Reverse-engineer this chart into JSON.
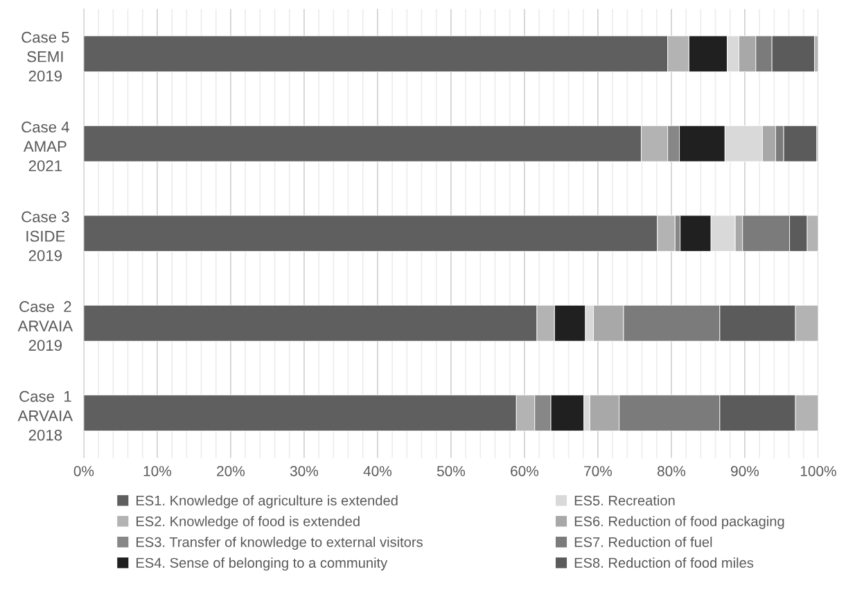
{
  "chart_data": {
    "type": "bar",
    "orientation": "horizontal",
    "stacked": true,
    "categories": [
      "Case 5\nSEMI\n2019",
      "Case 4\nAMAP\n2021",
      "Case 3\nISIDE\n2019",
      "Case  2\nARVAIA\n2019",
      "Case  1\nARVAIA\n2018"
    ],
    "series": [
      {
        "name": "ES1. Knowledge of agriculture is extended",
        "color": "#5f5f5f",
        "values": [
          79.5,
          75.9,
          78.1,
          61.7,
          58.9
        ]
      },
      {
        "name": "ES2. Knowledge of food is extended",
        "color": "#b3b3b3",
        "values": [
          2.9,
          3.6,
          2.4,
          2.4,
          2.5
        ]
      },
      {
        "name": "ES3. Transfer of knowledge to external visitors",
        "color": "#878787",
        "values": [
          0,
          1.6,
          0.7,
          0,
          2.2
        ]
      },
      {
        "name": "ES4. Sense of belonging to a community",
        "color": "#202020",
        "values": [
          5.2,
          6.2,
          4.2,
          4.2,
          4.5
        ]
      },
      {
        "name": "ES5. Recreation",
        "color": "#d9d9d9",
        "values": [
          1.6,
          5.1,
          3.3,
          1.1,
          0.8
        ]
      },
      {
        "name": "ES6. Reduction of food packaging",
        "color": "#a8a8a8",
        "values": [
          2.3,
          1.8,
          1.0,
          4.1,
          4.0
        ]
      },
      {
        "name": "ES7. Reduction of fuel",
        "color": "#7b7b7b",
        "values": [
          2.2,
          1.1,
          6.4,
          13.1,
          13.7
        ]
      },
      {
        "name": "ES8. Reduction of food miles",
        "color": "#5b5b5b",
        "values": [
          5.8,
          4.5,
          2.4,
          10.3,
          10.3
        ]
      },
      {
        "color": "#b3b3b3",
        "values": [
          0.5,
          0.2,
          1.5,
          3.1,
          3.1
        ]
      }
    ],
    "xlim": [
      0,
      100
    ],
    "xticks": [
      {
        "value": 0,
        "label": "0%"
      },
      {
        "value": 2,
        "label": null
      },
      {
        "value": 4,
        "label": null
      },
      {
        "value": 6,
        "label": null
      },
      {
        "value": 8,
        "label": null
      },
      {
        "value": 10,
        "label": "10%"
      },
      {
        "value": 12,
        "label": null
      },
      {
        "value": 14,
        "label": null
      },
      {
        "value": 16,
        "label": null
      },
      {
        "value": 18,
        "label": null
      },
      {
        "value": 20,
        "label": "20%"
      },
      {
        "value": 22,
        "label": null
      },
      {
        "value": 24,
        "label": null
      },
      {
        "value": 26,
        "label": null
      },
      {
        "value": 28,
        "label": null
      },
      {
        "value": 30,
        "label": "30%"
      },
      {
        "value": 32,
        "label": null
      },
      {
        "value": 34,
        "label": null
      },
      {
        "value": 36,
        "label": null
      },
      {
        "value": 38,
        "label": null
      },
      {
        "value": 40,
        "label": "40%"
      },
      {
        "value": 42,
        "label": null
      },
      {
        "value": 44,
        "label": null
      },
      {
        "value": 46,
        "label": null
      },
      {
        "value": 48,
        "label": null
      },
      {
        "value": 50,
        "label": "50%"
      },
      {
        "value": 52,
        "label": null
      },
      {
        "value": 54,
        "label": null
      },
      {
        "value": 56,
        "label": null
      },
      {
        "value": 58,
        "label": null
      },
      {
        "value": 60,
        "label": "60%"
      },
      {
        "value": 62,
        "label": null
      },
      {
        "value": 64,
        "label": null
      },
      {
        "value": 66,
        "label": null
      },
      {
        "value": 68,
        "label": null
      },
      {
        "value": 70,
        "label": "70%"
      },
      {
        "value": 72,
        "label": null
      },
      {
        "value": 74,
        "label": null
      },
      {
        "value": 76,
        "label": null
      },
      {
        "value": 78,
        "label": null
      },
      {
        "value": 80,
        "label": "80%"
      },
      {
        "value": 82,
        "label": null
      },
      {
        "value": 84,
        "label": null
      },
      {
        "value": 86,
        "label": null
      },
      {
        "value": 88,
        "label": null
      },
      {
        "value": 90,
        "label": "90%"
      },
      {
        "value": 92,
        "label": null
      },
      {
        "value": 94,
        "label": null
      },
      {
        "value": 96,
        "label": null
      },
      {
        "value": 98,
        "label": null
      },
      {
        "value": 100,
        "label": "100%"
      }
    ],
    "grid": "x",
    "legend": "bottom"
  }
}
